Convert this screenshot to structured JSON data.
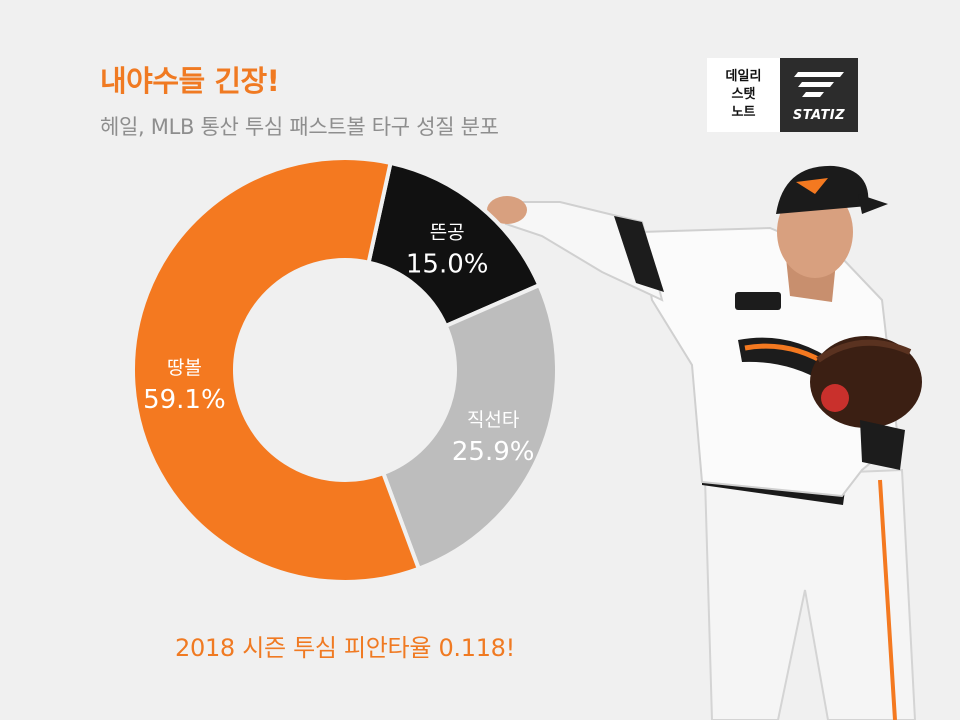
{
  "header": {
    "title": "내야수들 긴장!",
    "subtitle": "헤일, MLB 통산 투심 패스트볼 타구 성질 분포"
  },
  "logo": {
    "lines": [
      "데일리",
      "스탯",
      "노트"
    ],
    "brand": "STATIZ"
  },
  "footer": {
    "note": "2018 시즌 투심 피안타율 0.118!"
  },
  "colors": {
    "accent": "#f47920",
    "background": "#f0f0f0"
  },
  "chart_data": {
    "type": "pie",
    "donut": true,
    "categories": [
      "뜬공",
      "직선타",
      "땅볼"
    ],
    "values": [
      15.0,
      25.9,
      59.1
    ],
    "unit": "%",
    "colors": [
      "#111111",
      "#bdbdbd",
      "#f47920"
    ],
    "legend": "none"
  }
}
